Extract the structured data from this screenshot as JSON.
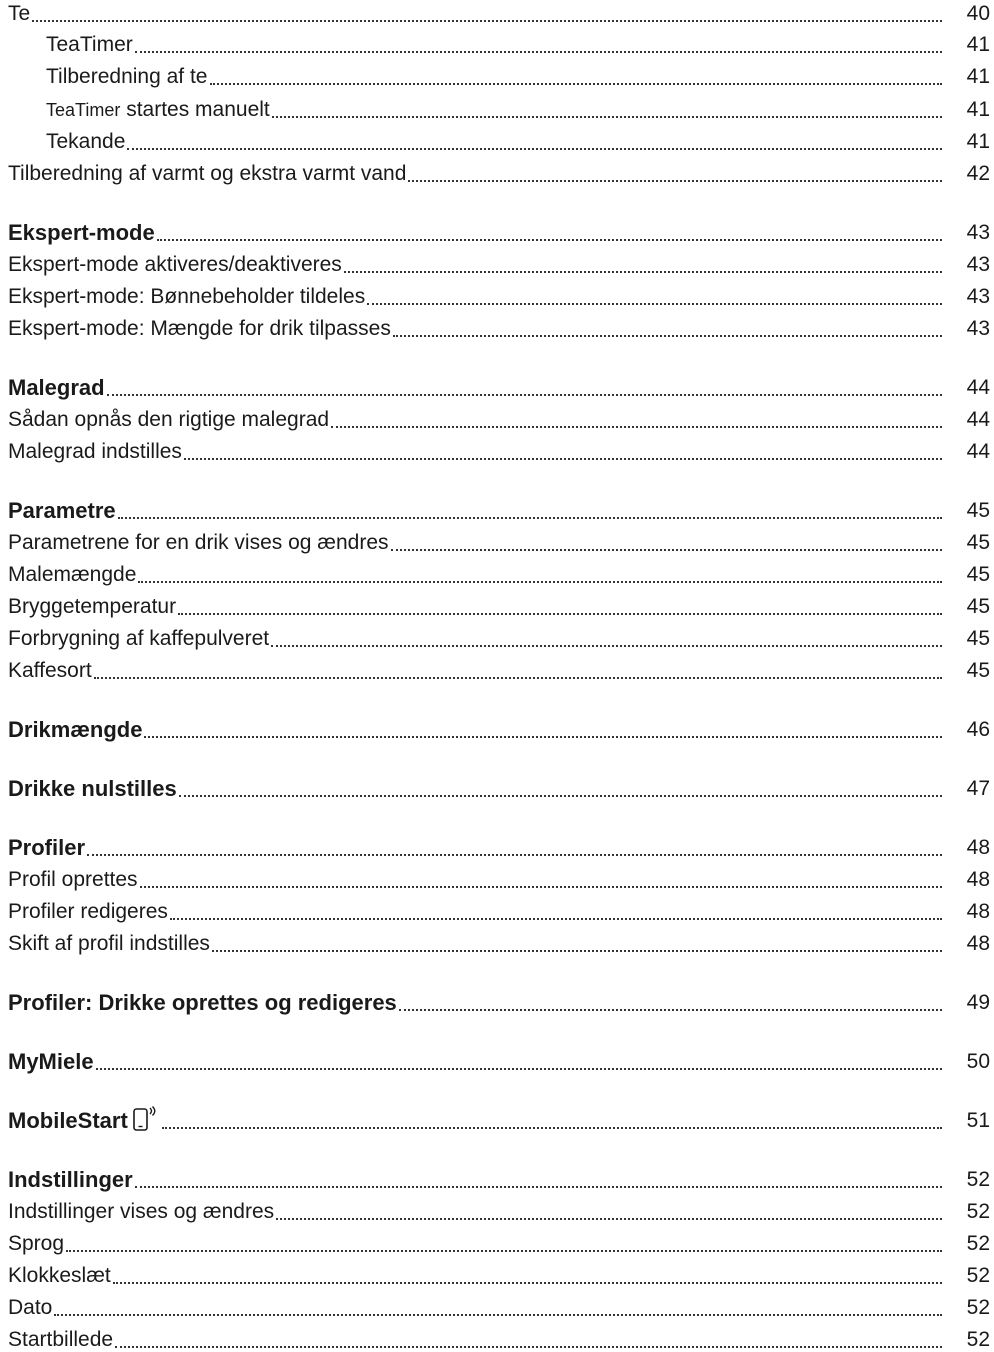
{
  "entries": [
    {
      "title": "Te",
      "page": "40",
      "level": 1,
      "bold": false
    },
    {
      "title": "TeaTimer",
      "page": "41",
      "level": 2,
      "bold": false
    },
    {
      "title": "Tilberedning af te",
      "page": "41",
      "level": 2,
      "bold": false
    },
    {
      "title_small": "TeaTimer",
      "title": " startes manuelt",
      "page": "41",
      "level": 2,
      "bold": false
    },
    {
      "title": "Tekande",
      "page": "41",
      "level": 2,
      "bold": false
    },
    {
      "title": "Tilberedning af varmt og ekstra varmt vand",
      "page": "42",
      "level": 1,
      "bold": false
    },
    {
      "title": "Ekspert-mode",
      "page": "43",
      "level": 1,
      "bold": true
    },
    {
      "title": "Ekspert-mode aktiveres/deaktiveres",
      "page": "43",
      "level": 1,
      "bold": false
    },
    {
      "title": "Ekspert-mode: Bønnebeholder tildeles",
      "page": "43",
      "level": 1,
      "bold": false
    },
    {
      "title": "Ekspert-mode: Mængde for drik tilpasses",
      "page": "43",
      "level": 1,
      "bold": false
    },
    {
      "title": "Malegrad",
      "page": "44",
      "level": 1,
      "bold": true
    },
    {
      "title": "Sådan opnås den rigtige malegrad",
      "page": "44",
      "level": 1,
      "bold": false
    },
    {
      "title": "Malegrad indstilles",
      "page": "44",
      "level": 1,
      "bold": false
    },
    {
      "title": "Parametre",
      "page": "45",
      "level": 1,
      "bold": true
    },
    {
      "title": "Parametrene for en drik vises og ændres",
      "page": "45",
      "level": 1,
      "bold": false
    },
    {
      "title": "Malemængde",
      "page": "45",
      "level": 1,
      "bold": false
    },
    {
      "title": "Bryggetemperatur",
      "page": "45",
      "level": 1,
      "bold": false
    },
    {
      "title": "Forbrygning af kaffepulveret",
      "page": "45",
      "level": 1,
      "bold": false
    },
    {
      "title": "Kaffesort",
      "page": "45",
      "level": 1,
      "bold": false
    },
    {
      "title": "Drikmængde",
      "page": "46",
      "level": 1,
      "bold": true
    },
    {
      "title": "Drikke nulstilles",
      "page": "47",
      "level": 1,
      "bold": true
    },
    {
      "title": "Profiler",
      "page": "48",
      "level": 1,
      "bold": true
    },
    {
      "title": "Profil oprettes",
      "page": "48",
      "level": 1,
      "bold": false
    },
    {
      "title": "Profiler redigeres",
      "page": "48",
      "level": 1,
      "bold": false
    },
    {
      "title": "Skift af profil indstilles",
      "page": "48",
      "level": 1,
      "bold": false
    },
    {
      "title": "Profiler: Drikke oprettes og redigeres",
      "page": "49",
      "level": 1,
      "bold": true
    },
    {
      "title": "MyMiele",
      "page": "50",
      "level": 1,
      "bold": true
    },
    {
      "title": "MobileStart",
      "page": "51",
      "level": 1,
      "bold": true,
      "icon": "mobile-phone-icon"
    },
    {
      "title": "Indstillinger",
      "page": "52",
      "level": 1,
      "bold": true
    },
    {
      "title": "Indstillinger vises og ændres",
      "page": "52",
      "level": 1,
      "bold": false
    },
    {
      "title": "Sprog",
      "page": "52",
      "level": 1,
      "bold": false
    },
    {
      "title": "Klokkeslæt",
      "page": "52",
      "level": 1,
      "bold": false
    },
    {
      "title": "Dato",
      "page": "52",
      "level": 1,
      "bold": false
    },
    {
      "title": "Startbillede",
      "page": "52",
      "level": 1,
      "bold": false
    }
  ]
}
